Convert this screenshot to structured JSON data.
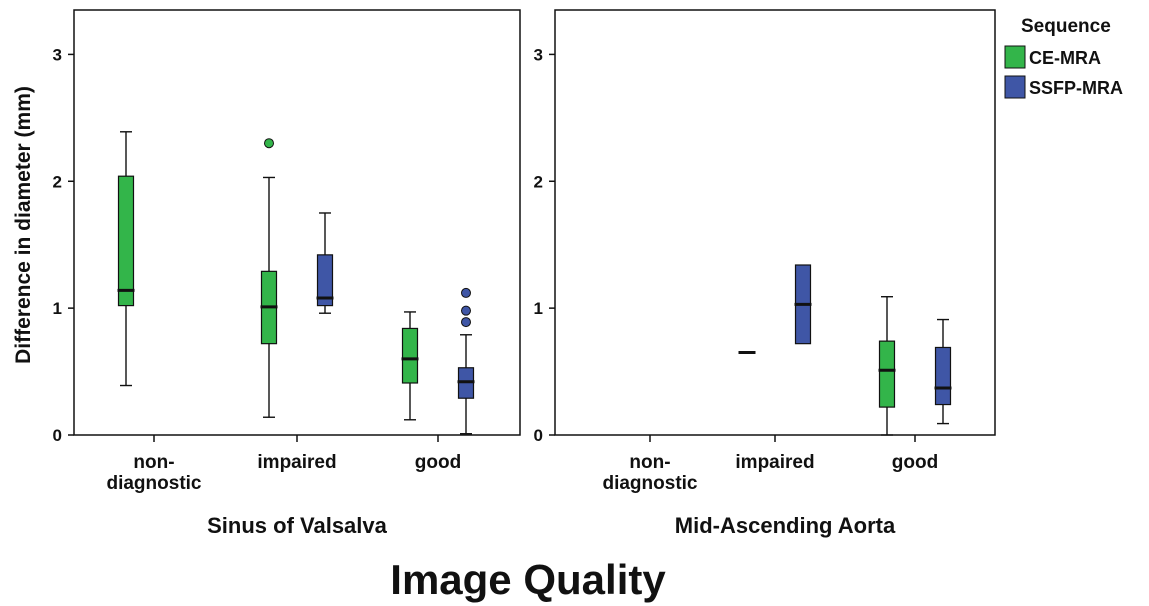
{
  "chart_data": {
    "type": "boxplot",
    "ylabel": "Difference in diameter (mm)",
    "xlabel": "Image Quality",
    "ylim": [
      0,
      3.35
    ],
    "yticks": [
      0,
      1,
      2,
      3
    ],
    "categories": [
      [
        "non-",
        "diagnostic"
      ],
      [
        "impaired"
      ],
      [
        "good"
      ]
    ],
    "legend": {
      "title": "Sequence",
      "placement": "right",
      "items": [
        {
          "name": "CE-MRA",
          "color": "#33b54a"
        },
        {
          "name": "SSFP-MRA",
          "color": "#3f56a6"
        }
      ]
    },
    "panels": [
      {
        "title": "Sinus of Valsalva",
        "boxes": [
          {
            "category": 0,
            "series": "CE-MRA",
            "min": 0.39,
            "q1": 1.02,
            "median": 1.14,
            "q3": 2.04,
            "max": 2.39,
            "outliers": []
          },
          {
            "category": 1,
            "series": "CE-MRA",
            "min": 0.14,
            "q1": 0.72,
            "median": 1.01,
            "q3": 1.29,
            "max": 2.03,
            "outliers": [
              2.3
            ]
          },
          {
            "category": 1,
            "series": "SSFP-MRA",
            "min": 0.96,
            "q1": 1.02,
            "median": 1.08,
            "q3": 1.42,
            "max": 1.75,
            "outliers": []
          },
          {
            "category": 2,
            "series": "CE-MRA",
            "min": 0.12,
            "q1": 0.41,
            "median": 0.6,
            "q3": 0.84,
            "max": 0.97,
            "outliers": []
          },
          {
            "category": 2,
            "series": "SSFP-MRA",
            "min": 0.01,
            "q1": 0.29,
            "median": 0.42,
            "q3": 0.53,
            "max": 0.79,
            "outliers": [
              0.89,
              0.98,
              1.12
            ]
          }
        ]
      },
      {
        "title": "Mid-Ascending Aorta",
        "boxes": [
          {
            "category": 1,
            "series": "CE-MRA",
            "min": 0.65,
            "q1": 0.65,
            "median": 0.65,
            "q3": 0.65,
            "max": 0.65,
            "outliers": []
          },
          {
            "category": 1,
            "series": "SSFP-MRA",
            "min": 0.72,
            "q1": 0.72,
            "median": 1.03,
            "q3": 1.34,
            "max": 1.34,
            "outliers": []
          },
          {
            "category": 2,
            "series": "CE-MRA",
            "min": 0.0,
            "q1": 0.22,
            "median": 0.51,
            "q3": 0.74,
            "max": 1.09,
            "outliers": []
          },
          {
            "category": 2,
            "series": "SSFP-MRA",
            "min": 0.09,
            "q1": 0.24,
            "median": 0.37,
            "q3": 0.69,
            "max": 0.91,
            "outliers": []
          }
        ]
      }
    ]
  }
}
